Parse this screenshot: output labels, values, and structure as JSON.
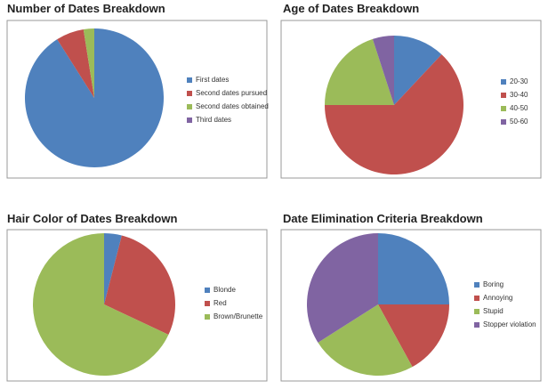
{
  "chart_data": [
    {
      "type": "pie",
      "title": "Number of Dates Breakdown",
      "categories": [
        "First dates",
        "Second dates pursued",
        "Second dates obtained",
        "Third dates"
      ],
      "values": [
        91,
        6.5,
        2.5,
        0
      ],
      "colors": [
        "#4f81bd",
        "#c0504d",
        "#9bbb59",
        "#8064a2"
      ],
      "legend": "right"
    },
    {
      "type": "pie",
      "title": "Age of Dates Breakdown",
      "categories": [
        "20-30",
        "30-40",
        "40-50",
        "50-60"
      ],
      "values": [
        12,
        63,
        20,
        5
      ],
      "colors": [
        "#4f81bd",
        "#c0504d",
        "#9bbb59",
        "#8064a2"
      ],
      "legend": "right"
    },
    {
      "type": "pie",
      "title": "Hair Color of Dates Breakdown",
      "categories": [
        "Blonde",
        "Red",
        "Brown/Brunette"
      ],
      "values": [
        4,
        28,
        68
      ],
      "colors": [
        "#4f81bd",
        "#c0504d",
        "#9bbb59"
      ],
      "legend": "right"
    },
    {
      "type": "pie",
      "title": "Date Elimination Criteria Breakdown",
      "categories": [
        "Boring",
        "Annoying",
        "Stupid",
        "Stopper violation"
      ],
      "values": [
        25,
        17,
        24,
        34
      ],
      "colors": [
        "#4f81bd",
        "#c0504d",
        "#9bbb59",
        "#8064a2"
      ],
      "legend": "right"
    }
  ]
}
